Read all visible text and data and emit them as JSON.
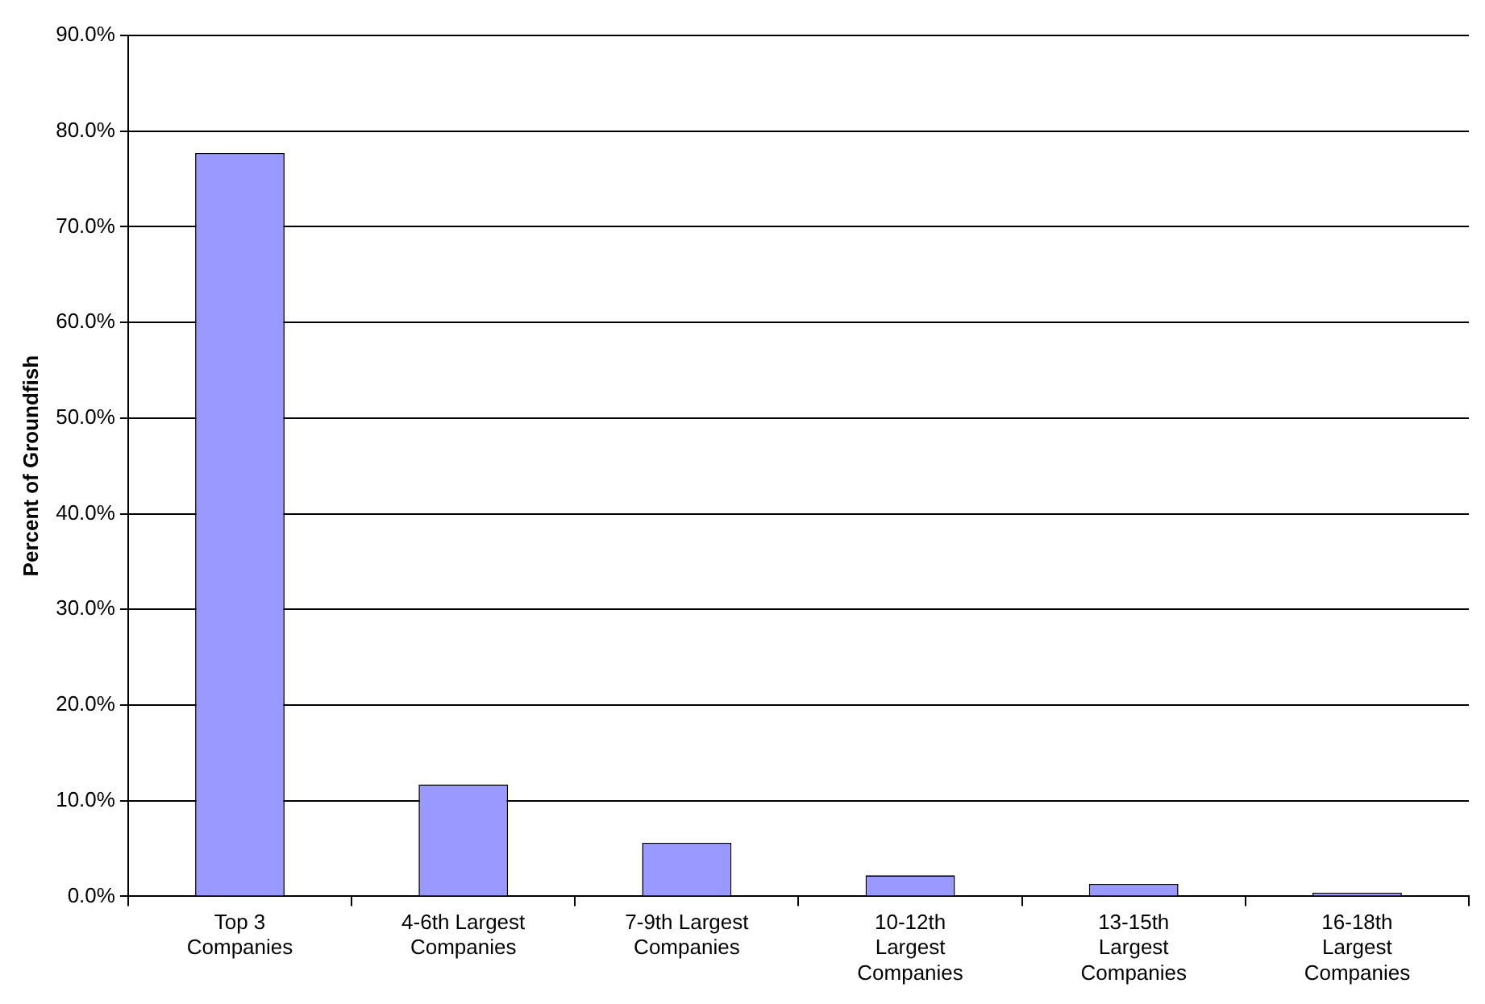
{
  "chart_data": {
    "type": "bar",
    "ylabel": "Percent of Groundfish",
    "categories": [
      "Top 3 Companies",
      "4-6th Largest Companies",
      "7-9th Largest Companies",
      "10-12th Largest Companies",
      "13-15th Largest Companies",
      "16-18th Largest Companies"
    ],
    "values": [
      77.7,
      11.7,
      5.6,
      2.2,
      1.3,
      0.4
    ],
    "color": "#9999ff",
    "ylim": [
      0,
      90
    ],
    "yticks": [
      {
        "value": 0,
        "label": "0.0%"
      },
      {
        "value": 10,
        "label": "10.0%"
      },
      {
        "value": 20,
        "label": "20.0%"
      },
      {
        "value": 30,
        "label": "30.0%"
      },
      {
        "value": 40,
        "label": "40.0%"
      },
      {
        "value": 50,
        "label": "50.0%"
      },
      {
        "value": 60,
        "label": "60.0%"
      },
      {
        "value": 70,
        "label": "70.0%"
      },
      {
        "value": 80,
        "label": "80.0%"
      },
      {
        "value": 90,
        "label": "90.0%"
      }
    ],
    "grid": "y",
    "legend": false
  }
}
